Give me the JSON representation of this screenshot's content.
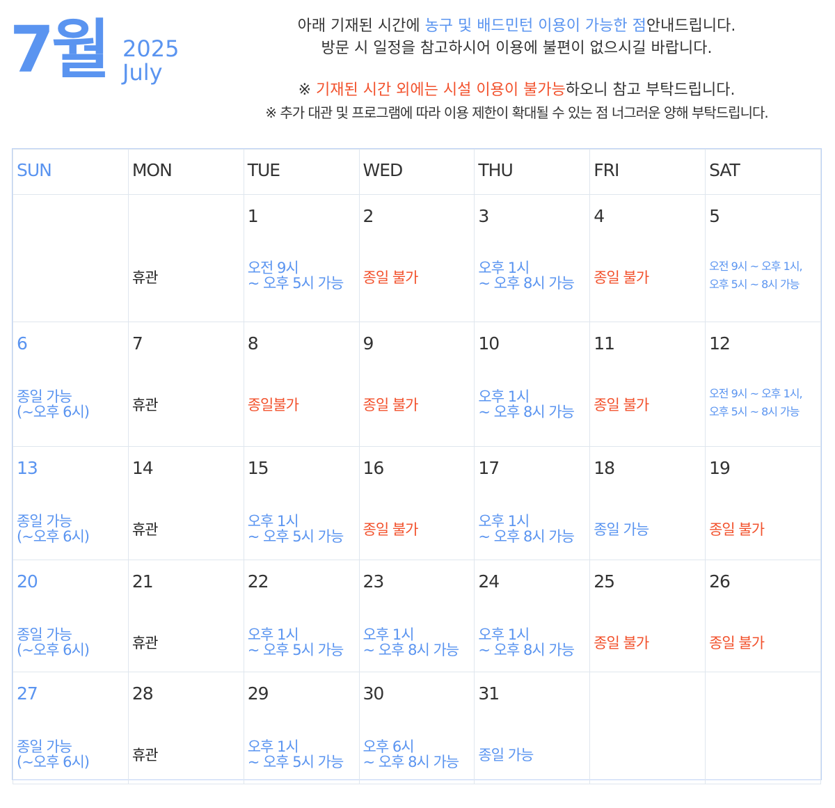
{
  "header": {
    "month": "7월",
    "year": "2025",
    "month_en": "July"
  },
  "notice": {
    "line1_pre": "아래 기재된 시간에 ",
    "line1_hl": "농구 및 배드민턴 이용이 가능한 점",
    "line1_post": "안내드립니다.",
    "line2": "방문 시 일정을 참고하시어 이용에 불편이 없으시길 바랍니다.",
    "line3_pre": "※ ",
    "line3_hl": "기재된 시간 외에는 시설 이용이 불가능",
    "line3_post": "하오니 참고 부탁드립니다.",
    "line4": "※ 추가 대관 및 프로그램에 따라 이용 제한이 확대될 수 있는 점 너그러운 양해 부탁드립니다."
  },
  "weekdays": [
    "SUN",
    "MON",
    "TUE",
    "WED",
    "THU",
    "FRI",
    "SAT"
  ],
  "colors": {
    "blue": "#5a94f0",
    "red": "#f2512c"
  },
  "weeks": [
    [
      {
        "day": "",
        "lines": [],
        "color": ""
      },
      {
        "day": "",
        "lines": [
          "휴관"
        ],
        "color": "black"
      },
      {
        "day": "1",
        "lines": [
          "오전 9시",
          "~ 오후 5시 가능"
        ],
        "color": "blue"
      },
      {
        "day": "2",
        "lines": [
          "종일 불가"
        ],
        "color": "red"
      },
      {
        "day": "3",
        "lines": [
          "오후 1시",
          "~ 오후 8시 가능"
        ],
        "color": "blue"
      },
      {
        "day": "4",
        "lines": [
          "종일 불가"
        ],
        "color": "red"
      },
      {
        "day": "5",
        "lines": [
          "오전 9시 ~ 오후 1시,",
          "오후 5시 ~ 8시 가능"
        ],
        "color": "blue",
        "small": true
      }
    ],
    [
      {
        "day": "6",
        "lines": [
          "종일 가능",
          "(~오후 6시)"
        ],
        "color": "blue"
      },
      {
        "day": "7",
        "lines": [
          "휴관"
        ],
        "color": "black"
      },
      {
        "day": "8",
        "lines": [
          "종일불가"
        ],
        "color": "red"
      },
      {
        "day": "9",
        "lines": [
          "종일 불가"
        ],
        "color": "red"
      },
      {
        "day": "10",
        "lines": [
          "오후 1시",
          "~ 오후 8시 가능"
        ],
        "color": "blue"
      },
      {
        "day": "11",
        "lines": [
          "종일 불가"
        ],
        "color": "red"
      },
      {
        "day": "12",
        "lines": [
          "오전 9시 ~ 오후 1시,",
          "오후 5시 ~ 8시 가능"
        ],
        "color": "blue",
        "small": true
      }
    ],
    [
      {
        "day": "13",
        "lines": [
          "종일 가능",
          "(~오후 6시)"
        ],
        "color": "blue"
      },
      {
        "day": "14",
        "lines": [
          "휴관"
        ],
        "color": "black"
      },
      {
        "day": "15",
        "lines": [
          "오후 1시",
          "~ 오후 5시 가능"
        ],
        "color": "blue"
      },
      {
        "day": "16",
        "lines": [
          "종일 불가"
        ],
        "color": "red"
      },
      {
        "day": "17",
        "lines": [
          "오후 1시",
          "~ 오후 8시 가능"
        ],
        "color": "blue"
      },
      {
        "day": "18",
        "lines": [
          "종일 가능"
        ],
        "color": "blue"
      },
      {
        "day": "19",
        "lines": [
          "종일 불가"
        ],
        "color": "red"
      }
    ],
    [
      {
        "day": "20",
        "lines": [
          "종일 가능",
          "(~오후 6시)"
        ],
        "color": "blue"
      },
      {
        "day": "21",
        "lines": [
          "휴관"
        ],
        "color": "black"
      },
      {
        "day": "22",
        "lines": [
          "오후 1시",
          "~ 오후 5시 가능"
        ],
        "color": "blue"
      },
      {
        "day": "23",
        "lines": [
          "오후 1시",
          "~ 오후 8시 가능"
        ],
        "color": "blue"
      },
      {
        "day": "24",
        "lines": [
          "오후 1시",
          "~ 오후 8시 가능"
        ],
        "color": "blue"
      },
      {
        "day": "25",
        "lines": [
          "종일 불가"
        ],
        "color": "red"
      },
      {
        "day": "26",
        "lines": [
          "종일 불가"
        ],
        "color": "red"
      }
    ],
    [
      {
        "day": "27",
        "lines": [
          "종일 가능",
          "(~오후 6시)"
        ],
        "color": "blue"
      },
      {
        "day": "28",
        "lines": [
          "휴관"
        ],
        "color": "black"
      },
      {
        "day": "29",
        "lines": [
          "오후 1시",
          "~ 오후 5시 가능"
        ],
        "color": "blue"
      },
      {
        "day": "30",
        "lines": [
          "오후 6시",
          "~ 오후 8시 가능"
        ],
        "color": "blue"
      },
      {
        "day": "31",
        "lines": [
          "종일 가능"
        ],
        "color": "blue"
      },
      {
        "day": "",
        "lines": [],
        "color": ""
      },
      {
        "day": "",
        "lines": [],
        "color": ""
      }
    ]
  ]
}
